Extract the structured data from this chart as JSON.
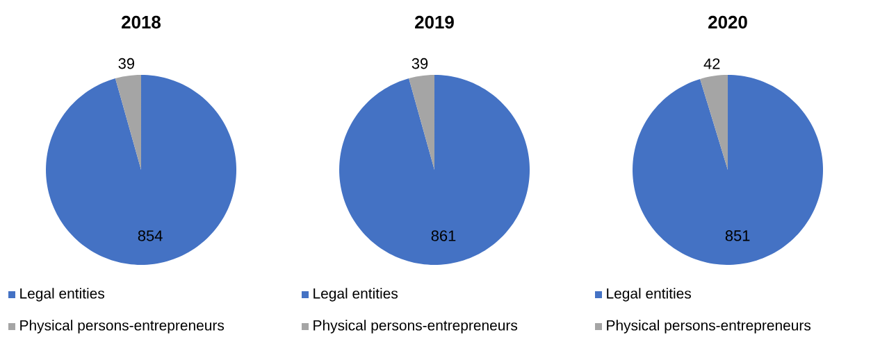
{
  "chart_data": [
    {
      "type": "pie",
      "title": "2018",
      "categories": [
        "Legal entities",
        "Physical persons-entrepreneurs"
      ],
      "values": [
        854,
        39
      ],
      "colors": [
        "#4472c4",
        "#a5a5a5"
      ],
      "data_labels": true,
      "legend": "bottom"
    },
    {
      "type": "pie",
      "title": "2019",
      "categories": [
        "Legal entities",
        "Physical persons-entrepreneurs"
      ],
      "values": [
        861,
        39
      ],
      "colors": [
        "#4472c4",
        "#a5a5a5"
      ],
      "data_labels": true,
      "legend": "bottom"
    },
    {
      "type": "pie",
      "title": "2020",
      "categories": [
        "Legal entities",
        "Physical persons-entrepreneurs"
      ],
      "values": [
        851,
        42
      ],
      "colors": [
        "#4472c4",
        "#a5a5a5"
      ],
      "data_labels": true,
      "legend": "bottom"
    }
  ]
}
